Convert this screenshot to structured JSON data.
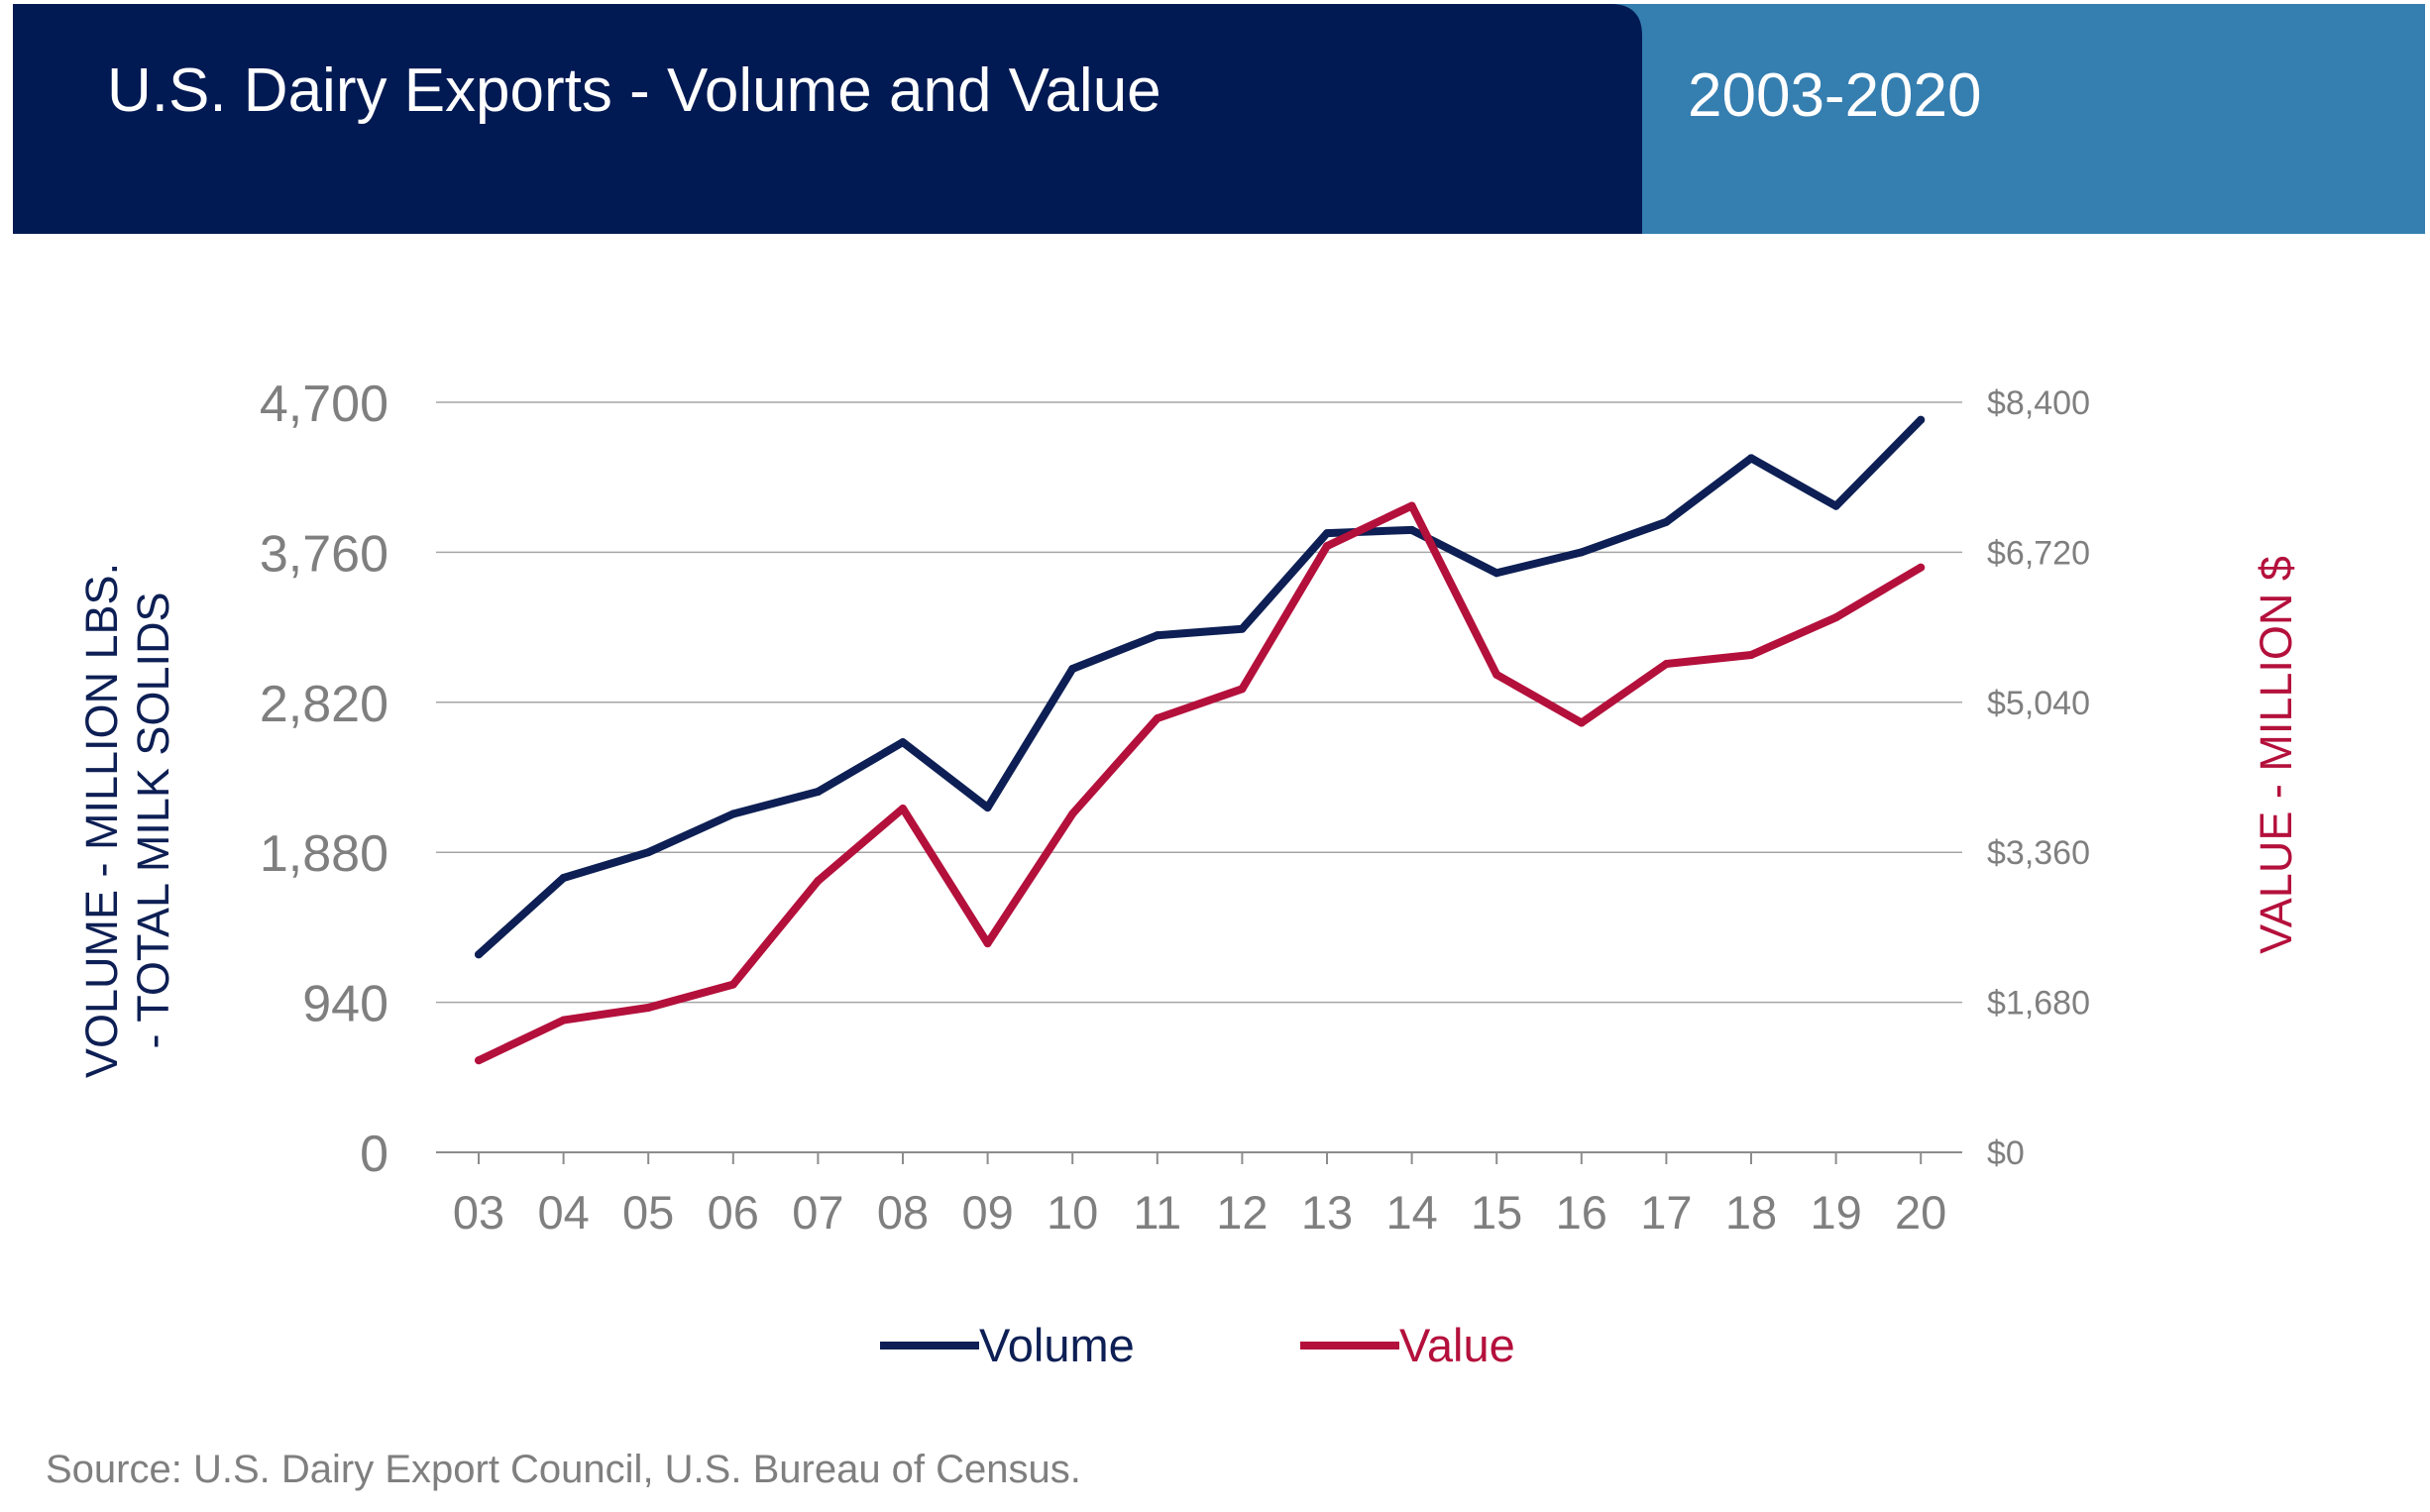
{
  "header": {
    "title": "U.S. Dairy Exports - Volume and Value",
    "years": "2003-2020"
  },
  "colors": {
    "header_dark": "#021a53",
    "header_light": "#357eb0",
    "volume": "#0d1f54",
    "value": "#b4103c",
    "tick_text": "#7f7f7f",
    "grid": "#a6a6a6"
  },
  "chart_data": {
    "type": "line",
    "title": "U.S. Dairy Exports - Volume and Value",
    "subtitle": "2003-2020",
    "x": [
      "03",
      "04",
      "05",
      "06",
      "07",
      "08",
      "09",
      "10",
      "11",
      "12",
      "13",
      "14",
      "15",
      "16",
      "17",
      "18",
      "19",
      "20"
    ],
    "series": [
      {
        "name": "Volume",
        "axis": "left",
        "values": [
          1240,
          1720,
          1880,
          2120,
          2260,
          2570,
          2160,
          3030,
          3240,
          3280,
          3880,
          3900,
          3630,
          3760,
          3950,
          4350,
          4050,
          4590
        ]
      },
      {
        "name": "Value",
        "axis": "right",
        "values": [
          1030,
          1480,
          1620,
          1880,
          3040,
          3850,
          2340,
          3790,
          4860,
          5190,
          6790,
          7240,
          5350,
          4810,
          5470,
          5570,
          5990,
          6550
        ]
      }
    ],
    "y_left": {
      "label": "VOLUME - MILLION LBS. - TOTAL MILK SOLIDS",
      "label_lines": [
        "VOLUME - MILLION LBS.",
        "- TOTAL MILK SOLIDS"
      ],
      "ylim": [
        0,
        4700
      ],
      "ticks": [
        "0",
        "940",
        "1,880",
        "2,820",
        "3,760",
        "4,700"
      ]
    },
    "y_right": {
      "label": "VALUE - MILLION $",
      "ylim": [
        0,
        8400
      ],
      "ticks": [
        "$0",
        "$1,680",
        "$3,360",
        "$5,040",
        "$6,720",
        "$8,400"
      ]
    },
    "grid": true,
    "legend_position": "bottom-center",
    "legend": [
      {
        "name": "Volume"
      },
      {
        "name": "Value"
      }
    ]
  },
  "source": "Source: U.S. Dairy Export Council, U.S. Bureau of Census."
}
